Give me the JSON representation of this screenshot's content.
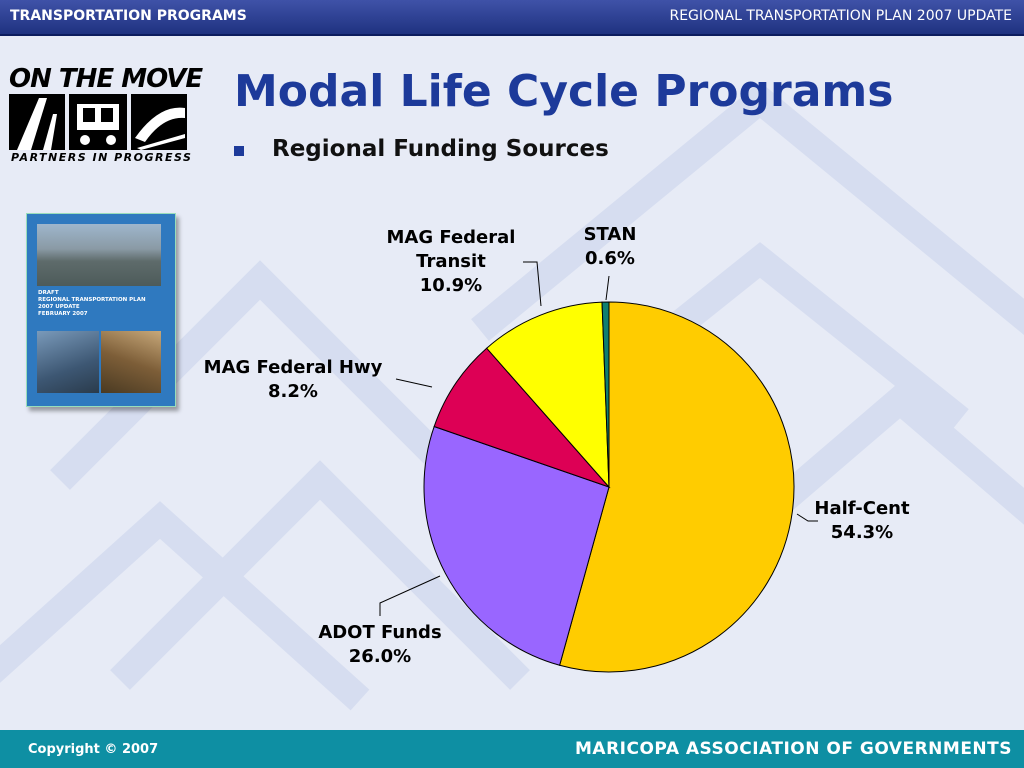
{
  "header": {
    "left": "TRANSPORTATION PROGRAMS",
    "right": "REGIONAL TRANSPORTATION PLAN 2007 UPDATE"
  },
  "logo": {
    "line1": "ON THE MOVE",
    "line2": "PARTNERS IN PROGRESS"
  },
  "cover": {
    "line1": "DRAFT",
    "line2": "REGIONAL TRANSPORTATION PLAN",
    "line3": "2007 UPDATE",
    "line4": "FEBRUARY 2007"
  },
  "title": "Modal Life Cycle Programs",
  "bullet": "Regional Funding Sources",
  "chart_data": {
    "type": "pie",
    "slices": [
      {
        "label": "Half-Cent",
        "value": 54.3,
        "display": "54.3%",
        "color": "#ffcc00"
      },
      {
        "label": "ADOT Funds",
        "value": 26.0,
        "display": "26.0%",
        "color": "#9966ff"
      },
      {
        "label": "MAG Federal Hwy",
        "value": 8.2,
        "display": "8.2%",
        "color": "#dd0055"
      },
      {
        "label": "MAG Federal Transit",
        "value": 10.9,
        "display": "10.9%",
        "color": "#ffff00"
      },
      {
        "label": "STAN",
        "value": 0.6,
        "display": "0.6%",
        "color": "#0f7f70"
      }
    ],
    "start": "12 o'clock",
    "direction": "clockwise"
  },
  "footer": {
    "copyright": "Copyright © 2007",
    "org": "MARICOPA ASSOCIATION OF GOVERNMENTS"
  },
  "colors": {
    "header_bar": "#2a3d90",
    "title": "#1d3a9a",
    "footer_bar": "#0e8fa3",
    "background": "#e7ebf6"
  }
}
